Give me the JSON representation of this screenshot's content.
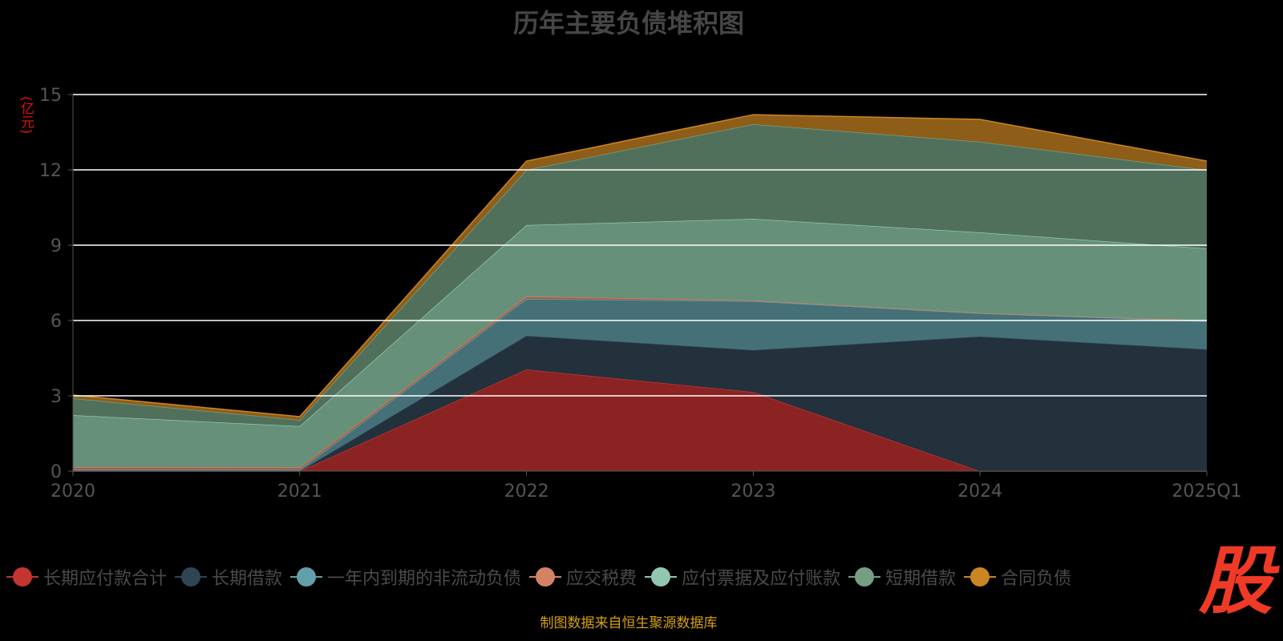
{
  "chart_data": {
    "type": "area",
    "stacked": true,
    "title": "历年主要负债堆积图",
    "ylabel": "(亿元)",
    "ylim": [
      0,
      15
    ],
    "yticks": [
      0,
      3,
      6,
      9,
      12,
      15
    ],
    "categories": [
      "2020",
      "2021",
      "2022",
      "2023",
      "2024",
      "2025Q1"
    ],
    "grid": true,
    "legend_position": "bottom",
    "series": [
      {
        "name": "长期应付款合计",
        "color": "#c23531",
        "fill": "#8b2323",
        "values": [
          0,
          0,
          4.05,
          3.15,
          0,
          0
        ]
      },
      {
        "name": "长期借款",
        "color": "#2f4554",
        "fill": "#22313c",
        "values": [
          0,
          0,
          1.34,
          1.67,
          5.36,
          4.85
        ]
      },
      {
        "name": "一年内到期的非流动负债",
        "color": "#61a0a8",
        "fill": "#457078",
        "values": [
          0.05,
          0.05,
          1.47,
          1.95,
          0.93,
          1.12
        ]
      },
      {
        "name": "应交税费",
        "color": "#d48265",
        "fill": "#a0604a",
        "values": [
          0.11,
          0.1,
          0.1,
          0.03,
          0.01,
          0.03
        ]
      },
      {
        "name": "应付票据及应付账款",
        "color": "#91c7ae",
        "fill": "#66907a",
        "values": [
          2.07,
          1.64,
          2.84,
          3.25,
          3.21,
          2.87
        ]
      },
      {
        "name": "短期借款",
        "color": "#749f83",
        "fill": "#51705c",
        "values": [
          0.67,
          0.25,
          2.2,
          3.77,
          3.61,
          3.13
        ]
      },
      {
        "name": "合同负债",
        "color": "#ca8622",
        "fill": "#8e5d18",
        "values": [
          0.13,
          0.13,
          0.35,
          0.38,
          0.89,
          0.35
        ]
      }
    ]
  },
  "source": "制图数据来自恒生聚源数据库",
  "logo_text": "股"
}
